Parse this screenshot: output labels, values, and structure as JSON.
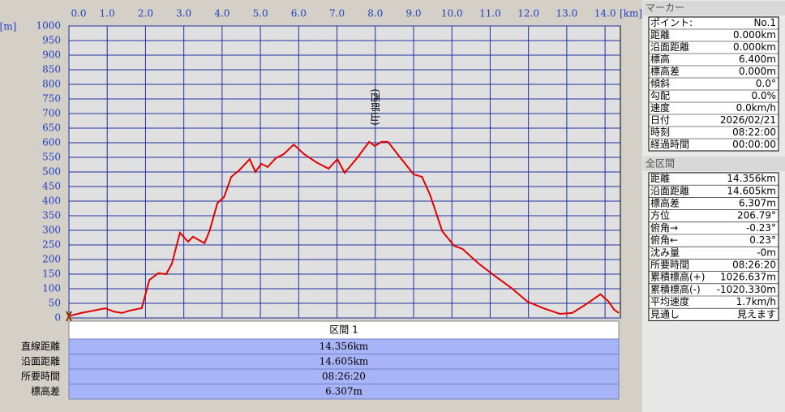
{
  "chart_data": {
    "type": "line",
    "y_unit": "[m]",
    "x_unit": "[km]",
    "annotation": "(西郎山)",
    "color": "#e00000",
    "grid": true,
    "xlim": [
      0,
      14.4
    ],
    "ylim": [
      0,
      1000
    ],
    "xticks": [
      {
        "value": 0,
        "label": "0.0"
      },
      {
        "value": 1,
        "label": "1.0"
      },
      {
        "value": 2,
        "label": "2.0"
      },
      {
        "value": 3,
        "label": "3.0"
      },
      {
        "value": 4,
        "label": "4.0"
      },
      {
        "value": 5,
        "label": "5.0"
      },
      {
        "value": 6,
        "label": "6.0"
      },
      {
        "value": 7,
        "label": "7.0"
      },
      {
        "value": 8,
        "label": "8.0"
      },
      {
        "value": 9,
        "label": "9.0"
      },
      {
        "value": 10,
        "label": "10.0"
      },
      {
        "value": 11,
        "label": "11.0"
      },
      {
        "value": 12,
        "label": "12.0"
      },
      {
        "value": 13,
        "label": "13.0"
      },
      {
        "value": 14,
        "label": "14.0"
      }
    ],
    "yticks": [
      0,
      50,
      100,
      150,
      200,
      250,
      300,
      350,
      400,
      450,
      500,
      550,
      600,
      650,
      700,
      750,
      800,
      850,
      900,
      950,
      1000
    ],
    "x": [
      0,
      0.32,
      0.64,
      0.95,
      1.17,
      1.38,
      1.59,
      1.8,
      1.9,
      2.1,
      2.33,
      2.54,
      2.69,
      2.9,
      3.11,
      3.24,
      3.39,
      3.54,
      3.67,
      3.88,
      4.05,
      4.24,
      4.45,
      4.72,
      4.87,
      5.02,
      5.19,
      5.4,
      5.61,
      5.87,
      6.14,
      6.46,
      6.78,
      7.01,
      7.2,
      7.52,
      7.84,
      7.99,
      8.16,
      8.33,
      8.58,
      9.0,
      9.22,
      9.43,
      9.75,
      10.06,
      10.28,
      10.7,
      11.12,
      11.55,
      11.97,
      12.39,
      12.82,
      13.14,
      13.45,
      13.88,
      14.09,
      14.24,
      14.36
    ],
    "values": [
      6,
      17,
      25,
      33,
      22,
      17,
      25,
      31,
      33,
      130,
      153,
      150,
      186,
      292,
      261,
      278,
      267,
      256,
      297,
      394,
      414,
      483,
      506,
      544,
      500,
      528,
      517,
      547,
      561,
      594,
      561,
      533,
      511,
      544,
      497,
      547,
      603,
      589,
      603,
      603,
      561,
      492,
      483,
      422,
      297,
      247,
      236,
      186,
      144,
      103,
      56,
      33,
      14,
      17,
      42,
      81,
      56,
      28,
      17
    ]
  },
  "section_table": {
    "header": "区間 1",
    "rows": [
      [
        "直線距離",
        "14.356km"
      ],
      [
        "沿面距離",
        "14.605km"
      ],
      [
        "所要時間",
        "08:26:20"
      ],
      [
        "標高差",
        "6.307m"
      ]
    ]
  },
  "marker_panel": {
    "title": "マーカー",
    "rows": [
      [
        "ポイント:",
        "No.1"
      ],
      [
        "距離",
        "0.000km"
      ],
      [
        "沿面距離",
        "0.000km"
      ],
      [
        "標高",
        "6.400m"
      ],
      [
        "標高差",
        "0.000m"
      ],
      [
        "傾斜",
        "0.0°"
      ],
      [
        "勾配",
        "0.0%"
      ],
      [
        "速度",
        "0.0km/h"
      ],
      [
        "日付",
        "2026/02/21"
      ],
      [
        "時刻",
        "08:22:00"
      ],
      [
        "経過時間",
        "00:00:00"
      ]
    ]
  },
  "total_panel": {
    "title": "全区間",
    "rows": [
      [
        "距離",
        "14.356km"
      ],
      [
        "沿面距離",
        "14.605km"
      ],
      [
        "標高差",
        "6.307m"
      ],
      [
        "方位",
        "206.79°"
      ],
      [
        "俯角→",
        "-0.23°"
      ],
      [
        "俯角←",
        "0.23°"
      ],
      [
        "沈み量",
        "-0m"
      ],
      [
        "所要時間",
        "08:26:20"
      ],
      [
        "累積標高(+)",
        "1026.637m"
      ],
      [
        "累積標高(-)",
        "-1020.330m"
      ],
      [
        "平均速度",
        "1.7km/h"
      ],
      [
        "見通し",
        "見えます"
      ]
    ]
  }
}
